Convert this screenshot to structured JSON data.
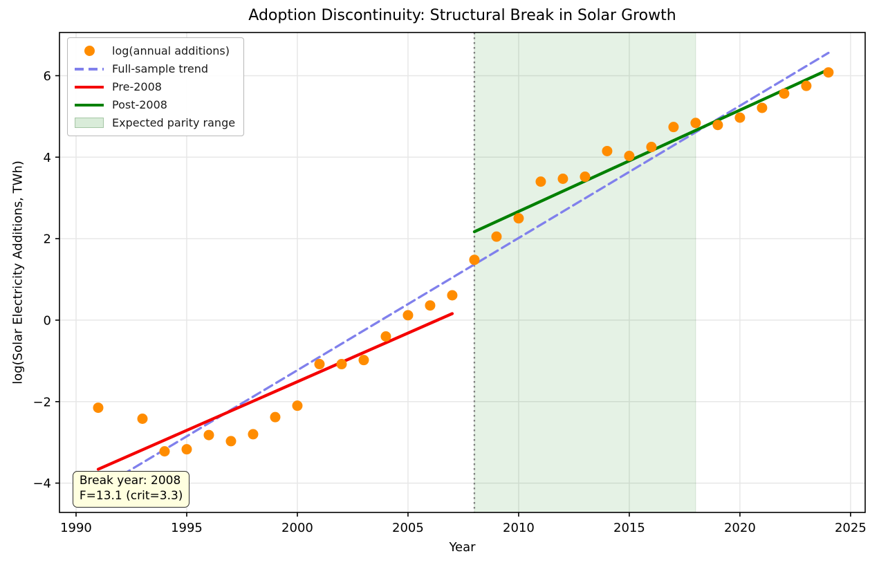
{
  "chart_data": {
    "type": "scatter",
    "title": "Adoption Discontinuity: Structural Break in Solar Growth",
    "xlabel": "Year",
    "ylabel": "log(Solar Electricity Additions, TWh)",
    "xlim": [
      1989.25,
      2025.66
    ],
    "ylim": [
      -4.72,
      7.06
    ],
    "xticks": [
      1990,
      1995,
      2000,
      2005,
      2010,
      2015,
      2020,
      2025
    ],
    "yticks": [
      -4,
      -2,
      0,
      2,
      4,
      6
    ],
    "grid": true,
    "legend_position": "upper-left",
    "scatter": {
      "label": "log(annual additions)",
      "color": "#ff8c00",
      "points": [
        [
          1991,
          -2.15
        ],
        [
          1993,
          -2.42
        ],
        [
          1994,
          -3.22
        ],
        [
          1995,
          -3.17
        ],
        [
          1996,
          -2.82
        ],
        [
          1997,
          -2.97
        ],
        [
          1998,
          -2.8
        ],
        [
          1999,
          -2.38
        ],
        [
          2000,
          -2.1
        ],
        [
          2001,
          -1.08
        ],
        [
          2002,
          -1.08
        ],
        [
          2003,
          -0.98
        ],
        [
          2004,
          -0.4
        ],
        [
          2005,
          0.12
        ],
        [
          2006,
          0.36
        ],
        [
          2007,
          0.61
        ],
        [
          2008,
          1.48
        ],
        [
          2009,
          2.05
        ],
        [
          2010,
          2.5
        ],
        [
          2011,
          3.4
        ],
        [
          2012,
          3.47
        ],
        [
          2013,
          3.52
        ],
        [
          2014,
          4.15
        ],
        [
          2015,
          4.03
        ],
        [
          2016,
          4.25
        ],
        [
          2017,
          4.74
        ],
        [
          2018,
          4.84
        ],
        [
          2019,
          4.79
        ],
        [
          2020,
          4.97
        ],
        [
          2021,
          5.21
        ],
        [
          2022,
          5.56
        ],
        [
          2023,
          5.75
        ],
        [
          2024,
          6.08
        ]
      ]
    },
    "trend_lines": [
      {
        "label": "Full-sample trend",
        "color": "#8080ec",
        "dash": "dashed",
        "x": [
          1991,
          2024
        ],
        "y": [
          -4.15,
          6.56
        ]
      },
      {
        "label": "Pre-2008",
        "color": "#f40000",
        "dash": "solid",
        "x": [
          1991,
          2007
        ],
        "y": [
          -3.66,
          0.16
        ]
      },
      {
        "label": "Post-2008",
        "color": "#008000",
        "dash": "solid",
        "x": [
          2008,
          2024
        ],
        "y": [
          2.17,
          6.15
        ]
      }
    ],
    "break_line": {
      "x": 2008,
      "color": "#808080",
      "dash": "dotted"
    },
    "parity_band": {
      "label": "Expected parity range",
      "x0": 2008,
      "x1": 2018,
      "fill": "rgba(0,128,0,0.10)"
    },
    "annotation": {
      "line1": "Break year: 2008",
      "line2": "F=13.1 (crit=3.3)",
      "x": 1989.84,
      "y": -3.71,
      "bg": "#ffffdf"
    },
    "colors": {
      "grid": "#e7e7e7",
      "spine": "#000000",
      "background": "#ffffff"
    }
  }
}
